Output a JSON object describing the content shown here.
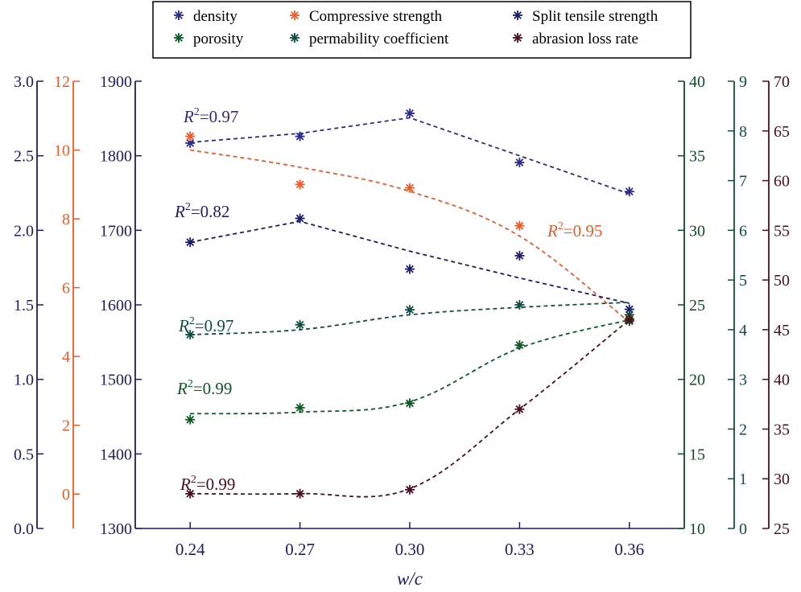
{
  "chart_data": {
    "type": "scatter",
    "xlabel": "w/c",
    "x_ticks": [
      "0.24",
      "0.27",
      "0.30",
      "0.33",
      "0.36"
    ],
    "x_values": [
      0.24,
      0.27,
      0.3,
      0.33,
      0.36
    ],
    "xlim": [
      0.225,
      0.375
    ],
    "axes": [
      {
        "id": "split",
        "color": "#1c1c6b",
        "ylim": [
          0.0,
          3.0
        ],
        "ticks": [
          "0.0",
          "0.5",
          "1.0",
          "1.5",
          "2.0",
          "2.5",
          "3.0"
        ],
        "side": "left"
      },
      {
        "id": "comp",
        "color": "#f05a28",
        "ylim": [
          -1,
          12
        ],
        "ticks": [
          "0",
          "2",
          "4",
          "6",
          "8",
          "10",
          "12"
        ],
        "side": "left"
      },
      {
        "id": "dens",
        "color": "#1c1c6b",
        "ylim": [
          1300,
          1900
        ],
        "ticks": [
          "1300",
          "1400",
          "1500",
          "1600",
          "1700",
          "1800",
          "1900"
        ],
        "side": "left"
      },
      {
        "id": "poro",
        "color": "#0c4f1f",
        "ylim": [
          10,
          40
        ],
        "ticks": [
          "10",
          "15",
          "20",
          "25",
          "30",
          "35",
          "40"
        ],
        "side": "right"
      },
      {
        "id": "perm",
        "color": "#0e4d44",
        "ylim": [
          0,
          9
        ],
        "ticks": [
          "0",
          "1",
          "2",
          "3",
          "4",
          "5",
          "6",
          "7",
          "8",
          "9"
        ],
        "side": "right"
      },
      {
        "id": "abr",
        "color": "#4a0f1a",
        "ylim": [
          25,
          70
        ],
        "ticks": [
          "25",
          "30",
          "35",
          "40",
          "45",
          "50",
          "55",
          "60",
          "65",
          "70"
        ],
        "side": "right"
      }
    ],
    "series": [
      {
        "name": "density",
        "axis": "dens",
        "color": "#2b2b8c",
        "values": [
          1817,
          1826,
          1857,
          1791,
          1752
        ],
        "r2": "0.97",
        "fit": [
          1818,
          1830,
          1851,
          1800,
          1749
        ],
        "fit_shape": "linear"
      },
      {
        "name": "Compressive strength",
        "axis": "comp",
        "color": "#f05a28",
        "values": [
          10.4,
          9.0,
          8.9,
          7.8,
          5.1
        ],
        "r2": "0.95",
        "fit": [
          10.0,
          9.5,
          8.8,
          7.5,
          5.0
        ],
        "fit_shape": "smooth"
      },
      {
        "name": "Split tensile strength",
        "axis": "split",
        "color": "#1c1c6b",
        "values": [
          1.92,
          2.08,
          1.74,
          1.83,
          1.47
        ],
        "r2": "0.82",
        "fit": [
          1.92,
          2.06,
          1.86,
          1.68,
          1.51
        ],
        "fit_shape": "linear"
      },
      {
        "name": "porosity",
        "axis": "poro",
        "color": "#0c5a24",
        "values": [
          17.3,
          18.1,
          18.4,
          22.3,
          23.9
        ],
        "r2": "0.99",
        "fit": [
          17.7,
          17.8,
          18.5,
          22.1,
          24.0
        ],
        "fit_shape": "smooth"
      },
      {
        "name": "permability coefficient",
        "axis": "perm",
        "color": "#0e4d44",
        "values": [
          3.9,
          4.1,
          4.4,
          4.5,
          4.3
        ],
        "r2": "0.97",
        "fit": [
          3.9,
          4.0,
          4.3,
          4.45,
          4.55
        ],
        "fit_shape": "smooth"
      },
      {
        "name": "abrasion loss rate",
        "axis": "abr",
        "color": "#4a0f1a",
        "values": [
          28.5,
          28.5,
          28.9,
          37.0,
          46.0
        ],
        "r2": "0.99",
        "fit": [
          28.5,
          28.5,
          29.0,
          37.0,
          46.0
        ],
        "fit_shape": "sigmoid"
      }
    ],
    "legend": {
      "placement": "top-center",
      "order": [
        "density",
        "Compressive strength",
        "Split tensile strength",
        "porosity",
        "permability coefficient",
        "abrasion loss rate"
      ]
    },
    "annotations": [
      {
        "series": "density",
        "prefix": "R",
        "sup": "2",
        "text": "=0.97"
      },
      {
        "series": "Split tensile strength",
        "prefix": "R",
        "sup": "2",
        "text": "=0.82"
      },
      {
        "series": "Compressive strength",
        "prefix": "R",
        "sup": "2",
        "text": "=0.95"
      },
      {
        "series": "permability coefficient",
        "prefix": "R",
        "sup": "2",
        "text": "=0.97"
      },
      {
        "series": "porosity",
        "prefix": "R",
        "sup": "2",
        "text": "=0.99"
      },
      {
        "series": "abrasion loss rate",
        "prefix": "R",
        "sup": "2",
        "text": "=0.99"
      }
    ]
  }
}
